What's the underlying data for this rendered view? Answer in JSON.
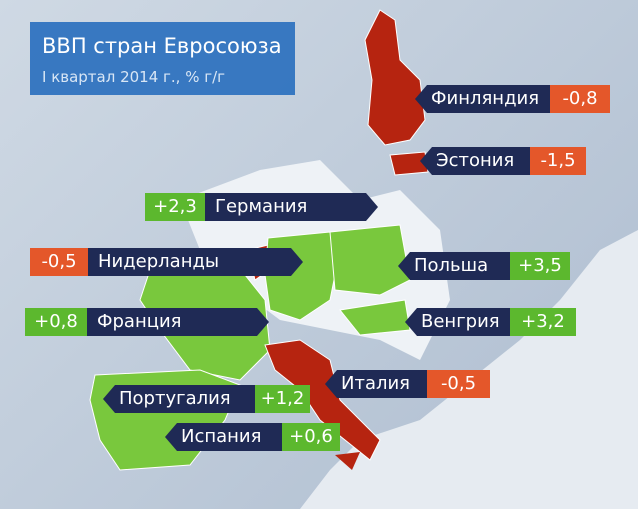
{
  "header": {
    "title": "ВВП стран Евросоюза",
    "subtitle": "I квартал 2014 г., % г/г"
  },
  "labels": [
    {
      "country": "Финляндия",
      "value": "-0,8",
      "color": "#e4572a"
    },
    {
      "country": "Эстония",
      "value": "-1,5",
      "color": "#e4572a"
    },
    {
      "country": "Германия",
      "value": "+2,3",
      "color": "#5cb82e"
    },
    {
      "country": "Нидерланды",
      "value": "-0,5",
      "color": "#e4572a"
    },
    {
      "country": "Польша",
      "value": "+3,5",
      "color": "#5cb82e"
    },
    {
      "country": "Франция",
      "value": "+0,8",
      "color": "#5cb82e"
    },
    {
      "country": "Венгрия",
      "value": "+3,2",
      "color": "#5cb82e"
    },
    {
      "country": "Италия",
      "value": "-0,5",
      "color": "#e4572a"
    },
    {
      "country": "Португалия",
      "value": "+1,2",
      "color": "#5cb82e"
    },
    {
      "country": "Испания",
      "value": "+0,6",
      "color": "#5cb82e"
    }
  ]
}
